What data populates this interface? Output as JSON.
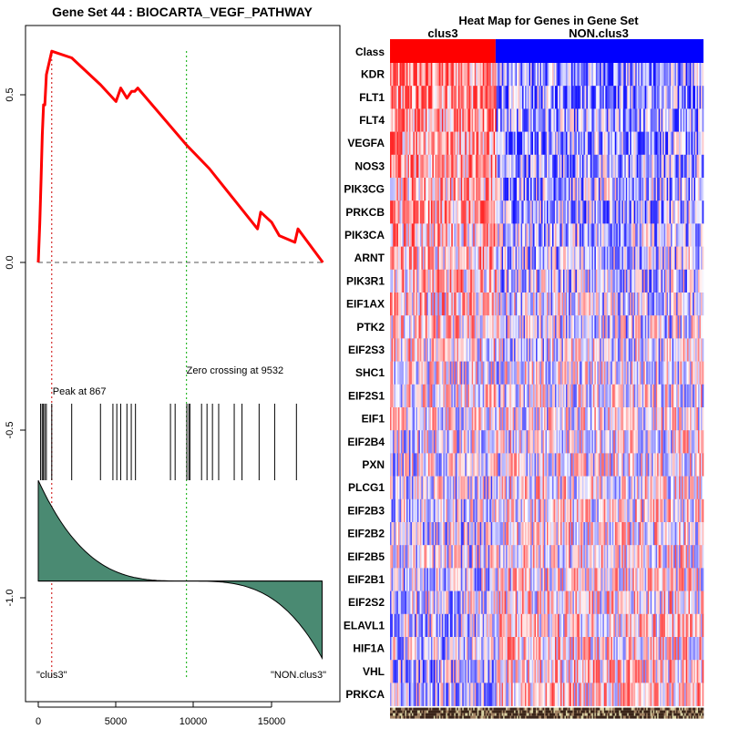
{
  "chart_data": [
    {
      "type": "line",
      "panel": "enrichment-plot",
      "title": "Gene Set  44 : BIOCARTA_VEGF_PATHWAY",
      "xlabel": "",
      "ylabel": "",
      "xlim": [
        0,
        18400
      ],
      "ylim": [
        -1.25,
        0.65
      ],
      "x_ticks": [
        0,
        5000,
        10000,
        15000
      ],
      "y_ticks": [
        0.5,
        0.0,
        -0.5,
        -1.0
      ],
      "y_tick_labels": [
        "0.5",
        "0.0",
        "-0.5",
        "-1.0"
      ],
      "running_es": {
        "color": "#ff0000",
        "x": [
          0,
          100,
          180,
          260,
          340,
          420,
          520,
          867,
          2150,
          4000,
          5000,
          5300,
          5700,
          6000,
          6200,
          6400,
          9532,
          11000,
          14100,
          14300,
          15000,
          15500,
          16500,
          16700,
          18300
        ],
        "y": [
          0.0,
          0.12,
          0.25,
          0.38,
          0.47,
          0.47,
          0.56,
          0.63,
          0.61,
          0.53,
          0.48,
          0.52,
          0.49,
          0.51,
          0.51,
          0.52,
          0.35,
          0.28,
          0.1,
          0.15,
          0.12,
          0.08,
          0.06,
          0.1,
          0.0
        ]
      },
      "zero_line": {
        "y": 0.0,
        "color": "#555555"
      },
      "peak": {
        "x": 867,
        "label": "Peak at 867",
        "color": "#cc0000"
      },
      "zero_crossing": {
        "x": 9532,
        "label": "Zero crossing at 9532",
        "color": "#00aa00"
      },
      "hit_positions": [
        150,
        250,
        330,
        420,
        520,
        867,
        2150,
        4000,
        4800,
        5050,
        5300,
        5700,
        5980,
        6250,
        8500,
        8800,
        9550,
        9680,
        9750,
        10500,
        10850,
        11200,
        11600,
        12600,
        13100,
        14200,
        15200,
        16600
      ],
      "ranked_metric": {
        "color": "#4a8a72",
        "baseline": -0.95,
        "start": -0.65,
        "end": -1.18,
        "zero_cross_x": 9532
      },
      "left_label": "\"clus3\"",
      "right_label": "\"NON.clus3\""
    },
    {
      "type": "heatmap",
      "panel": "heat-map",
      "title": "Heat Map for Genes in Gene Set",
      "class_row_label": "Class",
      "classes": [
        {
          "name": "clus3",
          "color": "#ff0000",
          "fraction": 0.337
        },
        {
          "name": "NON.clus3",
          "color": "#0000ff",
          "fraction": 0.663
        }
      ],
      "genes": [
        "KDR",
        "FLT1",
        "FLT4",
        "VEGFA",
        "NOS3",
        "PIK3CG",
        "PRKCB",
        "PIK3CA",
        "ARNT",
        "PIK3R1",
        "EIF1AX",
        "PTK2",
        "EIF2S3",
        "SHC1",
        "EIF2S1",
        "EIF1",
        "EIF2B4",
        "PXN",
        "PLCG1",
        "EIF2B3",
        "EIF2B2",
        "EIF2B5",
        "EIF2B1",
        "EIF2S2",
        "ELAVL1",
        "HIF1A",
        "VHL",
        "PRKCA"
      ],
      "row_bias": [
        0.55,
        0.55,
        0.5,
        0.5,
        0.45,
        0.35,
        0.4,
        0.3,
        0.25,
        0.25,
        0.2,
        0.15,
        0.1,
        0.05,
        0.05,
        0.0,
        -0.05,
        -0.05,
        -0.1,
        -0.1,
        -0.1,
        -0.1,
        -0.15,
        -0.15,
        -0.2,
        -0.2,
        -0.25,
        -0.25
      ],
      "low_color": "#0000ff",
      "mid_color": "#ffffff",
      "high_color": "#ff0000",
      "sample_count": 230
    }
  ]
}
